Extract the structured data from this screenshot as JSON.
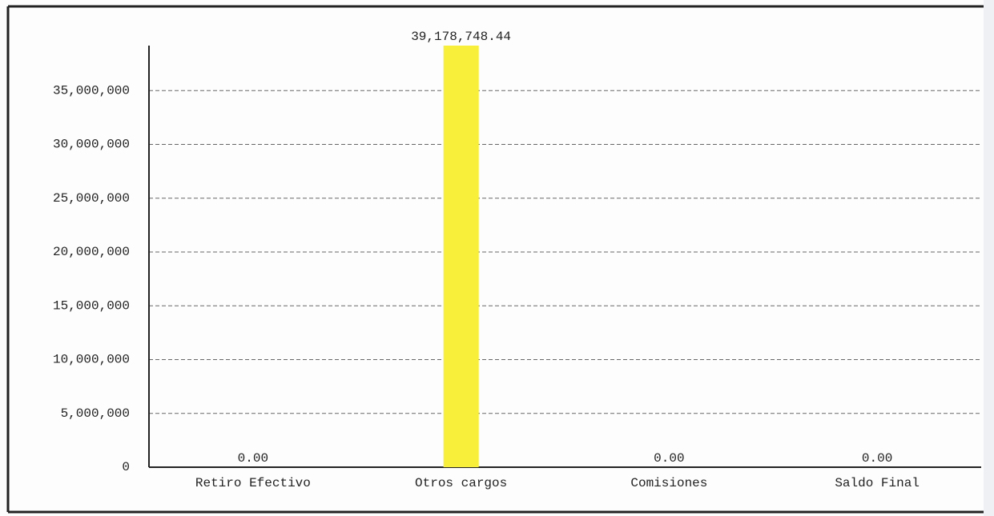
{
  "chart_data": {
    "type": "bar",
    "categories": [
      "Retiro Efectivo",
      "Otros cargos",
      "Comisiones",
      "Saldo Final"
    ],
    "values": [
      0,
      39178748.44,
      0,
      0
    ],
    "value_labels": [
      "0.00",
      "39,178,748.44",
      "0.00",
      "0.00"
    ],
    "color": "#f7ef3a",
    "ylim": [
      0,
      39178748.44
    ],
    "yticks": [
      0,
      {
        "value": 5000000,
        "label": "5,000,000"
      },
      {
        "value": 10000000,
        "label": "10,000,000"
      },
      {
        "value": 15000000,
        "label": "15,000,000"
      },
      {
        "value": 20000000,
        "label": "20,000,000"
      },
      {
        "value": 25000000,
        "label": "25,000,000"
      },
      {
        "value": 30000000,
        "label": "30,000,000"
      },
      {
        "value": 35000000,
        "label": "35,000,000"
      }
    ],
    "grid": true
  }
}
